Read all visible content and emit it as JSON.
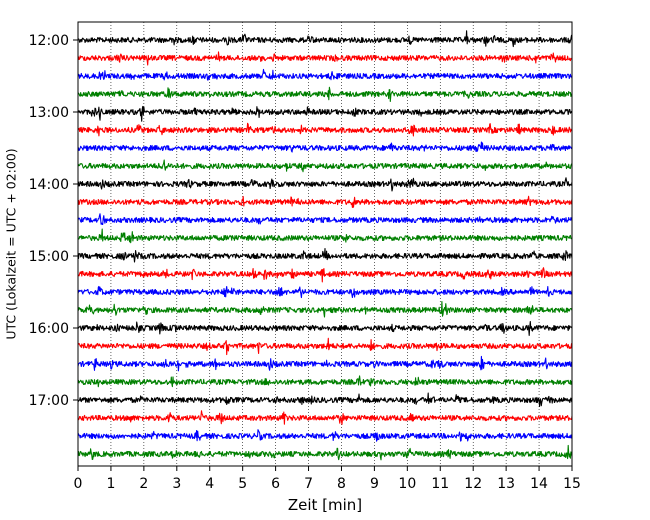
{
  "chart_data": {
    "type": "line",
    "title": "",
    "xlabel": "Zeit  [min]",
    "ylabel": "UTC (Lokalzeit = UTC + 02:00)",
    "xlim": [
      0,
      15
    ],
    "x_ticks": [
      0,
      1,
      2,
      3,
      4,
      5,
      6,
      7,
      8,
      9,
      10,
      11,
      12,
      13,
      14,
      15
    ],
    "x_tick_labels": [
      "0",
      "1",
      "2",
      "3",
      "4",
      "5",
      "6",
      "7",
      "8",
      "9",
      "10",
      "11",
      "12",
      "13",
      "14",
      "15"
    ],
    "y_tick_labels": [
      "12:00",
      "13:00",
      "14:00",
      "15:00",
      "16:00",
      "17:00"
    ],
    "grid": "vertical dotted lines at each minute",
    "trace_interval_minutes": 15,
    "color_cycle": [
      "#000000",
      "#ff0000",
      "#0000ff",
      "#008000"
    ],
    "traces": [
      {
        "start": "12:00",
        "color": "#000000"
      },
      {
        "start": "12:15",
        "color": "#ff0000"
      },
      {
        "start": "12:30",
        "color": "#0000ff"
      },
      {
        "start": "12:45",
        "color": "#008000"
      },
      {
        "start": "13:00",
        "color": "#000000"
      },
      {
        "start": "13:15",
        "color": "#ff0000"
      },
      {
        "start": "13:30",
        "color": "#0000ff"
      },
      {
        "start": "13:45",
        "color": "#008000"
      },
      {
        "start": "14:00",
        "color": "#000000"
      },
      {
        "start": "14:15",
        "color": "#ff0000"
      },
      {
        "start": "14:30",
        "color": "#0000ff"
      },
      {
        "start": "14:45",
        "color": "#008000"
      },
      {
        "start": "15:00",
        "color": "#000000"
      },
      {
        "start": "15:15",
        "color": "#ff0000"
      },
      {
        "start": "15:30",
        "color": "#0000ff"
      },
      {
        "start": "15:45",
        "color": "#008000"
      },
      {
        "start": "16:00",
        "color": "#000000"
      },
      {
        "start": "16:15",
        "color": "#ff0000"
      },
      {
        "start": "16:30",
        "color": "#0000ff"
      },
      {
        "start": "16:45",
        "color": "#008000"
      },
      {
        "start": "17:00",
        "color": "#000000"
      },
      {
        "start": "17:15",
        "color": "#ff0000"
      },
      {
        "start": "17:30",
        "color": "#0000ff"
      },
      {
        "start": "17:45",
        "color": "#008000"
      }
    ]
  }
}
